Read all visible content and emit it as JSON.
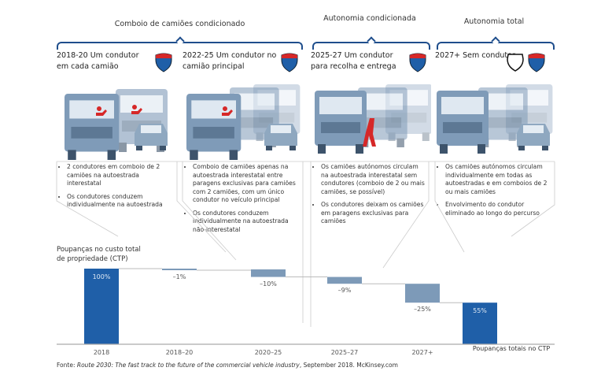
{
  "phases": [
    {
      "label": "Comboio de camiões condicionado"
    },
    {
      "label": "Autonomia condicionada"
    },
    {
      "label": "Autonomia total"
    }
  ],
  "stages": [
    {
      "title": "2018-20 Um condutor em cada camião",
      "bullets": [
        "2 condutores em comboio de 2 camiões na autoestrada interestatal",
        "Os condutores conduzem individualmente na autoestrada"
      ]
    },
    {
      "title": "2022-25 Um condutor no camião principal",
      "bullets": [
        "Comboio de camiões apenas na autoestrada interestatal entre paragens exclusivas para camiões com 2 camiões, com um único condutor no veículo principal",
        "Os condutores conduzem individualmente na autoestrada não-interestatal"
      ]
    },
    {
      "title": "2025-27 Um condutor para recolha e entrega",
      "bullets": [
        "Os camiões autónomos circulam na autoestrada interestatal sem condutores (comboio de 2 ou mais camiões, se possível)",
        "Os condutores deixam os camiões em paragens exclusivas para camiões"
      ]
    },
    {
      "title": "2027+ Sem condutor",
      "bullets": [
        "Os camiões autónomos circulam individualmente em todas as autoestradas e em comboios de 2 ou mais camiões",
        "Envolvimento do condutor eliminado ao longo do percurso"
      ]
    }
  ],
  "colors": {
    "brand": "#1f5fa8",
    "step": "#7d9ab8",
    "brace": "#1f4e8c",
    "driver": "#d62828",
    "truck": "#7f9bb8"
  },
  "chart_data": {
    "type": "waterfall",
    "title": "Poupanças no custo total de propriedade (CTP)",
    "categories": [
      "2018",
      "2018–20",
      "2020–25",
      "2025–27",
      "2027+",
      "Poupanças totais no CTP"
    ],
    "values": [
      100,
      -1,
      -10,
      -9,
      -25,
      55
    ],
    "labels": [
      "100%",
      "–1%",
      "–10%",
      "–9%",
      "–25%",
      "55%"
    ],
    "ylim": [
      0,
      100
    ]
  },
  "source": {
    "prefix": "Fonte: ",
    "title": "Route 2030: The fast track to the future of the commercial vehicle industry",
    "suffix": ", September 2018. McKinsey.com"
  }
}
